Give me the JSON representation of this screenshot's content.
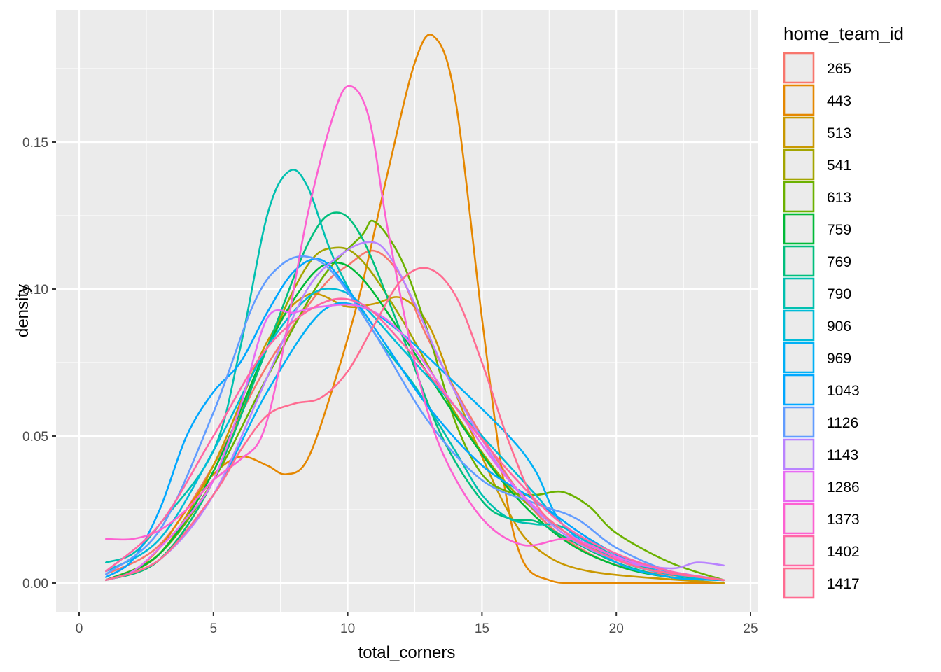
{
  "chart_data": {
    "type": "line",
    "subtype": "density",
    "xlabel": "total_corners",
    "ylabel": "density",
    "xlim": [
      0,
      25
    ],
    "ylim": [
      -0.009,
      0.195
    ],
    "x_ticks": [
      0,
      5,
      10,
      15,
      20,
      25
    ],
    "y_ticks": [
      0.0,
      0.05,
      0.1,
      0.15
    ],
    "y_tick_labels": [
      "0.00",
      "0.05",
      "0.10",
      "0.15"
    ],
    "grid": true,
    "background": "#EBEBEB",
    "legend": {
      "title": "home_team_id",
      "position": "right"
    },
    "series": [
      {
        "name": "265",
        "color": "#F8766D",
        "points": [
          [
            1,
            0.003
          ],
          [
            3,
            0.013
          ],
          [
            5,
            0.04
          ],
          [
            7,
            0.074
          ],
          [
            9,
            0.1
          ],
          [
            10,
            0.108
          ],
          [
            11,
            0.113
          ],
          [
            12,
            0.104
          ],
          [
            13,
            0.083
          ],
          [
            15,
            0.05
          ],
          [
            17,
            0.024
          ],
          [
            19,
            0.01
          ],
          [
            21,
            0.004
          ],
          [
            24,
            0.001
          ]
        ]
      },
      {
        "name": "443",
        "color": "#E58700",
        "points": [
          [
            1,
            0.001
          ],
          [
            2,
            0.004
          ],
          [
            3,
            0.012
          ],
          [
            4,
            0.025
          ],
          [
            5,
            0.037
          ],
          [
            6,
            0.043
          ],
          [
            7,
            0.04
          ],
          [
            7.7,
            0.037
          ],
          [
            8.5,
            0.042
          ],
          [
            9.5,
            0.068
          ],
          [
            10.5,
            0.1
          ],
          [
            11.5,
            0.14
          ],
          [
            12.5,
            0.177
          ],
          [
            13.2,
            0.186
          ],
          [
            14,
            0.165
          ],
          [
            15,
            0.09
          ],
          [
            15.8,
            0.035
          ],
          [
            16.5,
            0.008
          ],
          [
            17.5,
            0.001
          ],
          [
            19,
            0.0
          ],
          [
            24,
            0.0
          ]
        ]
      },
      {
        "name": "513",
        "color": "#C99800",
        "points": [
          [
            1,
            0.001
          ],
          [
            3,
            0.01
          ],
          [
            5,
            0.04
          ],
          [
            7,
            0.082
          ],
          [
            8.5,
            0.098
          ],
          [
            10,
            0.094
          ],
          [
            11,
            0.095
          ],
          [
            12,
            0.097
          ],
          [
            13,
            0.088
          ],
          [
            14,
            0.065
          ],
          [
            15,
            0.043
          ],
          [
            16,
            0.024
          ],
          [
            17,
            0.012
          ],
          [
            19,
            0.004
          ],
          [
            24,
            0.0
          ]
        ]
      },
      {
        "name": "541",
        "color": "#A3A500",
        "points": [
          [
            1,
            0.001
          ],
          [
            3,
            0.008
          ],
          [
            5,
            0.035
          ],
          [
            7,
            0.08
          ],
          [
            8.5,
            0.108
          ],
          [
            9.5,
            0.114
          ],
          [
            10.5,
            0.11
          ],
          [
            12,
            0.09
          ],
          [
            14,
            0.058
          ],
          [
            16,
            0.033
          ],
          [
            18,
            0.018
          ],
          [
            20,
            0.008
          ],
          [
            22,
            0.003
          ],
          [
            24,
            0.001
          ]
        ]
      },
      {
        "name": "613",
        "color": "#6BB100",
        "points": [
          [
            1,
            0.001
          ],
          [
            3,
            0.01
          ],
          [
            5,
            0.035
          ],
          [
            7,
            0.07
          ],
          [
            9,
            0.103
          ],
          [
            10.5,
            0.118
          ],
          [
            11,
            0.123
          ],
          [
            12,
            0.11
          ],
          [
            13,
            0.085
          ],
          [
            14,
            0.055
          ],
          [
            15,
            0.037
          ],
          [
            16,
            0.031
          ],
          [
            17,
            0.03
          ],
          [
            18,
            0.031
          ],
          [
            19,
            0.026
          ],
          [
            20,
            0.017
          ],
          [
            22,
            0.007
          ],
          [
            24,
            0.001
          ]
        ]
      },
      {
        "name": "759",
        "color": "#00BA38",
        "points": [
          [
            1,
            0.001
          ],
          [
            3,
            0.01
          ],
          [
            5,
            0.038
          ],
          [
            7,
            0.08
          ],
          [
            8.5,
            0.103
          ],
          [
            9.5,
            0.109
          ],
          [
            10.5,
            0.104
          ],
          [
            12,
            0.085
          ],
          [
            14,
            0.057
          ],
          [
            16,
            0.032
          ],
          [
            18,
            0.015
          ],
          [
            20,
            0.006
          ],
          [
            22,
            0.002
          ],
          [
            24,
            0.001
          ]
        ]
      },
      {
        "name": "769",
        "color": "#00BF7D",
        "points": [
          [
            1,
            0.001
          ],
          [
            3,
            0.008
          ],
          [
            5,
            0.035
          ],
          [
            7,
            0.08
          ],
          [
            8.5,
            0.115
          ],
          [
            9.5,
            0.126
          ],
          [
            10.5,
            0.118
          ],
          [
            12,
            0.085
          ],
          [
            13.5,
            0.05
          ],
          [
            15,
            0.028
          ],
          [
            16,
            0.022
          ],
          [
            17,
            0.021
          ],
          [
            18,
            0.016
          ],
          [
            20,
            0.007
          ],
          [
            22,
            0.002
          ],
          [
            24,
            0.001
          ]
        ]
      },
      {
        "name": "790",
        "color": "#00C0AF",
        "points": [
          [
            1,
            0.007
          ],
          [
            2,
            0.01
          ],
          [
            3,
            0.02
          ],
          [
            5,
            0.045
          ],
          [
            6,
            0.08
          ],
          [
            7,
            0.125
          ],
          [
            7.8,
            0.14
          ],
          [
            8.5,
            0.135
          ],
          [
            9.5,
            0.11
          ],
          [
            11,
            0.085
          ],
          [
            12.5,
            0.067
          ],
          [
            14,
            0.045
          ],
          [
            15,
            0.03
          ],
          [
            16,
            0.022
          ],
          [
            17,
            0.02
          ],
          [
            18,
            0.019
          ],
          [
            20,
            0.009
          ],
          [
            22,
            0.003
          ],
          [
            24,
            0.001
          ]
        ]
      },
      {
        "name": "906",
        "color": "#00BCD8",
        "points": [
          [
            1,
            0.004
          ],
          [
            3,
            0.015
          ],
          [
            5,
            0.045
          ],
          [
            7,
            0.08
          ],
          [
            8.5,
            0.097
          ],
          [
            9.5,
            0.1
          ],
          [
            10.5,
            0.095
          ],
          [
            12,
            0.08
          ],
          [
            14,
            0.06
          ],
          [
            15.5,
            0.045
          ],
          [
            17,
            0.03
          ],
          [
            18,
            0.02
          ],
          [
            20,
            0.008
          ],
          [
            22,
            0.003
          ],
          [
            24,
            0.001
          ]
        ]
      },
      {
        "name": "969",
        "color": "#00B0F6",
        "points": [
          [
            1,
            0.001
          ],
          [
            3,
            0.008
          ],
          [
            5,
            0.03
          ],
          [
            7,
            0.065
          ],
          [
            9,
            0.092
          ],
          [
            10.5,
            0.094
          ],
          [
            12,
            0.085
          ],
          [
            14,
            0.068
          ],
          [
            16,
            0.05
          ],
          [
            17,
            0.038
          ],
          [
            18,
            0.02
          ],
          [
            20,
            0.007
          ],
          [
            22,
            0.002
          ],
          [
            24,
            0.001
          ]
        ]
      },
      {
        "name": "1043",
        "color": "#00A7FF",
        "points": [
          [
            1,
            0.002
          ],
          [
            2,
            0.008
          ],
          [
            3,
            0.025
          ],
          [
            4,
            0.05
          ],
          [
            5,
            0.065
          ],
          [
            6,
            0.075
          ],
          [
            7,
            0.092
          ],
          [
            8,
            0.106
          ],
          [
            9,
            0.11
          ],
          [
            10,
            0.1
          ],
          [
            11.5,
            0.08
          ],
          [
            13,
            0.06
          ],
          [
            15,
            0.04
          ],
          [
            17,
            0.028
          ],
          [
            19,
            0.015
          ],
          [
            21,
            0.006
          ],
          [
            24,
            0.001
          ]
        ]
      },
      {
        "name": "1126",
        "color": "#619CFF",
        "points": [
          [
            1,
            0.003
          ],
          [
            3,
            0.018
          ],
          [
            5,
            0.058
          ],
          [
            6.5,
            0.095
          ],
          [
            7.5,
            0.108
          ],
          [
            8.5,
            0.111
          ],
          [
            9.5,
            0.105
          ],
          [
            11,
            0.085
          ],
          [
            13,
            0.055
          ],
          [
            15,
            0.035
          ],
          [
            17,
            0.027
          ],
          [
            18.5,
            0.022
          ],
          [
            20,
            0.012
          ],
          [
            22,
            0.004
          ],
          [
            24,
            0.001
          ]
        ]
      },
      {
        "name": "1143",
        "color": "#B983FF",
        "points": [
          [
            1,
            0.001
          ],
          [
            3,
            0.008
          ],
          [
            5,
            0.03
          ],
          [
            7,
            0.07
          ],
          [
            8.5,
            0.1
          ],
          [
            9.8,
            0.112
          ],
          [
            10.8,
            0.116
          ],
          [
            11.5,
            0.112
          ],
          [
            12.5,
            0.095
          ],
          [
            14,
            0.065
          ],
          [
            16,
            0.035
          ],
          [
            18,
            0.017
          ],
          [
            20,
            0.008
          ],
          [
            22,
            0.005
          ],
          [
            23,
            0.007
          ],
          [
            24,
            0.006
          ]
        ]
      },
      {
        "name": "1286",
        "color": "#E76BF3",
        "points": [
          [
            1,
            0.001
          ],
          [
            2,
            0.004
          ],
          [
            3,
            0.012
          ],
          [
            4,
            0.022
          ],
          [
            5,
            0.035
          ],
          [
            6,
            0.06
          ],
          [
            7,
            0.09
          ],
          [
            8,
            0.092
          ],
          [
            9,
            0.094
          ],
          [
            10.5,
            0.094
          ],
          [
            12,
            0.085
          ],
          [
            14,
            0.06
          ],
          [
            16,
            0.035
          ],
          [
            18,
            0.018
          ],
          [
            20,
            0.009
          ],
          [
            22,
            0.004
          ],
          [
            24,
            0.001
          ]
        ]
      },
      {
        "name": "1373",
        "color": "#FD61D1",
        "points": [
          [
            1,
            0.015
          ],
          [
            2,
            0.015
          ],
          [
            3,
            0.018
          ],
          [
            4,
            0.025
          ],
          [
            5,
            0.035
          ],
          [
            6,
            0.042
          ],
          [
            6.8,
            0.05
          ],
          [
            7.5,
            0.075
          ],
          [
            8.5,
            0.125
          ],
          [
            9.5,
            0.16
          ],
          [
            10.1,
            0.169
          ],
          [
            10.8,
            0.158
          ],
          [
            11.5,
            0.12
          ],
          [
            12.5,
            0.075
          ],
          [
            13.5,
            0.045
          ],
          [
            15,
            0.022
          ],
          [
            16.5,
            0.013
          ],
          [
            18,
            0.015
          ],
          [
            19,
            0.013
          ],
          [
            21,
            0.005
          ],
          [
            24,
            0.001
          ]
        ]
      },
      {
        "name": "1402",
        "color": "#FF67A4",
        "points": [
          [
            1,
            0.004
          ],
          [
            3,
            0.02
          ],
          [
            5,
            0.05
          ],
          [
            7,
            0.08
          ],
          [
            9,
            0.095
          ],
          [
            10.5,
            0.095
          ],
          [
            12,
            0.082
          ],
          [
            14,
            0.06
          ],
          [
            16,
            0.038
          ],
          [
            18,
            0.02
          ],
          [
            20,
            0.01
          ],
          [
            22,
            0.004
          ],
          [
            24,
            0.001
          ]
        ]
      },
      {
        "name": "1417",
        "color": "#FF6C91",
        "points": [
          [
            1,
            0.001
          ],
          [
            3,
            0.008
          ],
          [
            5,
            0.03
          ],
          [
            6,
            0.045
          ],
          [
            7,
            0.057
          ],
          [
            8,
            0.061
          ],
          [
            9,
            0.063
          ],
          [
            10,
            0.072
          ],
          [
            11,
            0.088
          ],
          [
            12,
            0.103
          ],
          [
            13,
            0.107
          ],
          [
            14,
            0.098
          ],
          [
            15,
            0.075
          ],
          [
            16,
            0.048
          ],
          [
            17,
            0.027
          ],
          [
            18,
            0.018
          ],
          [
            19,
            0.012
          ],
          [
            21,
            0.005
          ],
          [
            24,
            0.001
          ]
        ]
      }
    ]
  }
}
